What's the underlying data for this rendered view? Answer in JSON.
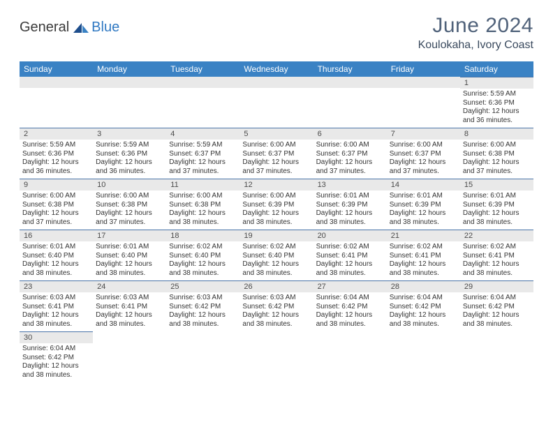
{
  "logo": {
    "text_a": "General",
    "text_b": "Blue"
  },
  "title": "June 2024",
  "location": "Koulokaha, Ivory Coast",
  "colors": {
    "header_bg": "#3a82c4",
    "header_text": "#ffffff",
    "daynum_bg": "#e9e9e9",
    "title_color": "#50627a",
    "day_border": "#4a74a8"
  },
  "weekdays": [
    "Sunday",
    "Monday",
    "Tuesday",
    "Wednesday",
    "Thursday",
    "Friday",
    "Saturday"
  ],
  "grid": [
    [
      null,
      null,
      null,
      null,
      null,
      null,
      {
        "n": "1",
        "sr": "5:59 AM",
        "ss": "6:36 PM",
        "dl": "12 hours and 36 minutes."
      }
    ],
    [
      {
        "n": "2",
        "sr": "5:59 AM",
        "ss": "6:36 PM",
        "dl": "12 hours and 36 minutes."
      },
      {
        "n": "3",
        "sr": "5:59 AM",
        "ss": "6:36 PM",
        "dl": "12 hours and 36 minutes."
      },
      {
        "n": "4",
        "sr": "5:59 AM",
        "ss": "6:37 PM",
        "dl": "12 hours and 37 minutes."
      },
      {
        "n": "5",
        "sr": "6:00 AM",
        "ss": "6:37 PM",
        "dl": "12 hours and 37 minutes."
      },
      {
        "n": "6",
        "sr": "6:00 AM",
        "ss": "6:37 PM",
        "dl": "12 hours and 37 minutes."
      },
      {
        "n": "7",
        "sr": "6:00 AM",
        "ss": "6:37 PM",
        "dl": "12 hours and 37 minutes."
      },
      {
        "n": "8",
        "sr": "6:00 AM",
        "ss": "6:38 PM",
        "dl": "12 hours and 37 minutes."
      }
    ],
    [
      {
        "n": "9",
        "sr": "6:00 AM",
        "ss": "6:38 PM",
        "dl": "12 hours and 37 minutes."
      },
      {
        "n": "10",
        "sr": "6:00 AM",
        "ss": "6:38 PM",
        "dl": "12 hours and 37 minutes."
      },
      {
        "n": "11",
        "sr": "6:00 AM",
        "ss": "6:38 PM",
        "dl": "12 hours and 38 minutes."
      },
      {
        "n": "12",
        "sr": "6:00 AM",
        "ss": "6:39 PM",
        "dl": "12 hours and 38 minutes."
      },
      {
        "n": "13",
        "sr": "6:01 AM",
        "ss": "6:39 PM",
        "dl": "12 hours and 38 minutes."
      },
      {
        "n": "14",
        "sr": "6:01 AM",
        "ss": "6:39 PM",
        "dl": "12 hours and 38 minutes."
      },
      {
        "n": "15",
        "sr": "6:01 AM",
        "ss": "6:39 PM",
        "dl": "12 hours and 38 minutes."
      }
    ],
    [
      {
        "n": "16",
        "sr": "6:01 AM",
        "ss": "6:40 PM",
        "dl": "12 hours and 38 minutes."
      },
      {
        "n": "17",
        "sr": "6:01 AM",
        "ss": "6:40 PM",
        "dl": "12 hours and 38 minutes."
      },
      {
        "n": "18",
        "sr": "6:02 AM",
        "ss": "6:40 PM",
        "dl": "12 hours and 38 minutes."
      },
      {
        "n": "19",
        "sr": "6:02 AM",
        "ss": "6:40 PM",
        "dl": "12 hours and 38 minutes."
      },
      {
        "n": "20",
        "sr": "6:02 AM",
        "ss": "6:41 PM",
        "dl": "12 hours and 38 minutes."
      },
      {
        "n": "21",
        "sr": "6:02 AM",
        "ss": "6:41 PM",
        "dl": "12 hours and 38 minutes."
      },
      {
        "n": "22",
        "sr": "6:02 AM",
        "ss": "6:41 PM",
        "dl": "12 hours and 38 minutes."
      }
    ],
    [
      {
        "n": "23",
        "sr": "6:03 AM",
        "ss": "6:41 PM",
        "dl": "12 hours and 38 minutes."
      },
      {
        "n": "24",
        "sr": "6:03 AM",
        "ss": "6:41 PM",
        "dl": "12 hours and 38 minutes."
      },
      {
        "n": "25",
        "sr": "6:03 AM",
        "ss": "6:42 PM",
        "dl": "12 hours and 38 minutes."
      },
      {
        "n": "26",
        "sr": "6:03 AM",
        "ss": "6:42 PM",
        "dl": "12 hours and 38 minutes."
      },
      {
        "n": "27",
        "sr": "6:04 AM",
        "ss": "6:42 PM",
        "dl": "12 hours and 38 minutes."
      },
      {
        "n": "28",
        "sr": "6:04 AM",
        "ss": "6:42 PM",
        "dl": "12 hours and 38 minutes."
      },
      {
        "n": "29",
        "sr": "6:04 AM",
        "ss": "6:42 PM",
        "dl": "12 hours and 38 minutes."
      }
    ],
    [
      {
        "n": "30",
        "sr": "6:04 AM",
        "ss": "6:42 PM",
        "dl": "12 hours and 38 minutes."
      },
      null,
      null,
      null,
      null,
      null,
      null
    ]
  ],
  "labels": {
    "sunrise": "Sunrise: ",
    "sunset": "Sunset: ",
    "daylight": "Daylight: "
  }
}
